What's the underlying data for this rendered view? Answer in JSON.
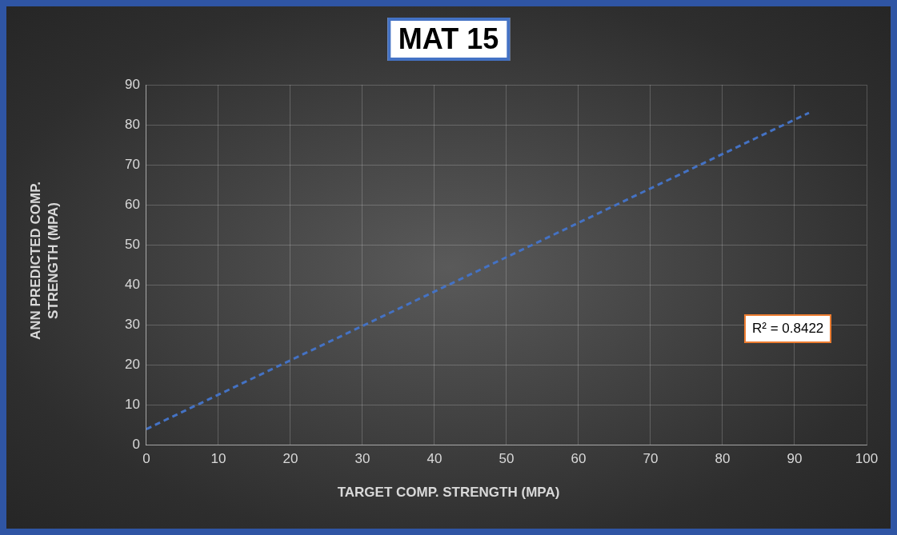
{
  "chart_data": {
    "type": "line",
    "title": "MAT 15",
    "xlabel": "TARGET COMP. STRENGTH (MPA)",
    "ylabel": "ANN PREDICTED COMP. STRENGTH (MPA)",
    "series": [
      {
        "color": "#4472c4",
        "x": [
          0,
          92
        ],
        "values": [
          4,
          83
        ]
      }
    ],
    "line_style": "dashed",
    "marker": "none",
    "grid": true,
    "legend": false,
    "xlim": [
      0,
      100
    ],
    "xticks": [
      0,
      10,
      20,
      30,
      40,
      50,
      60,
      70,
      80,
      90,
      100
    ],
    "ylim": [
      0,
      90
    ],
    "yticks": [
      0,
      10,
      20,
      30,
      40,
      50,
      60,
      70,
      80,
      90
    ],
    "annotations": [
      "R² = 0.8422"
    ]
  }
}
